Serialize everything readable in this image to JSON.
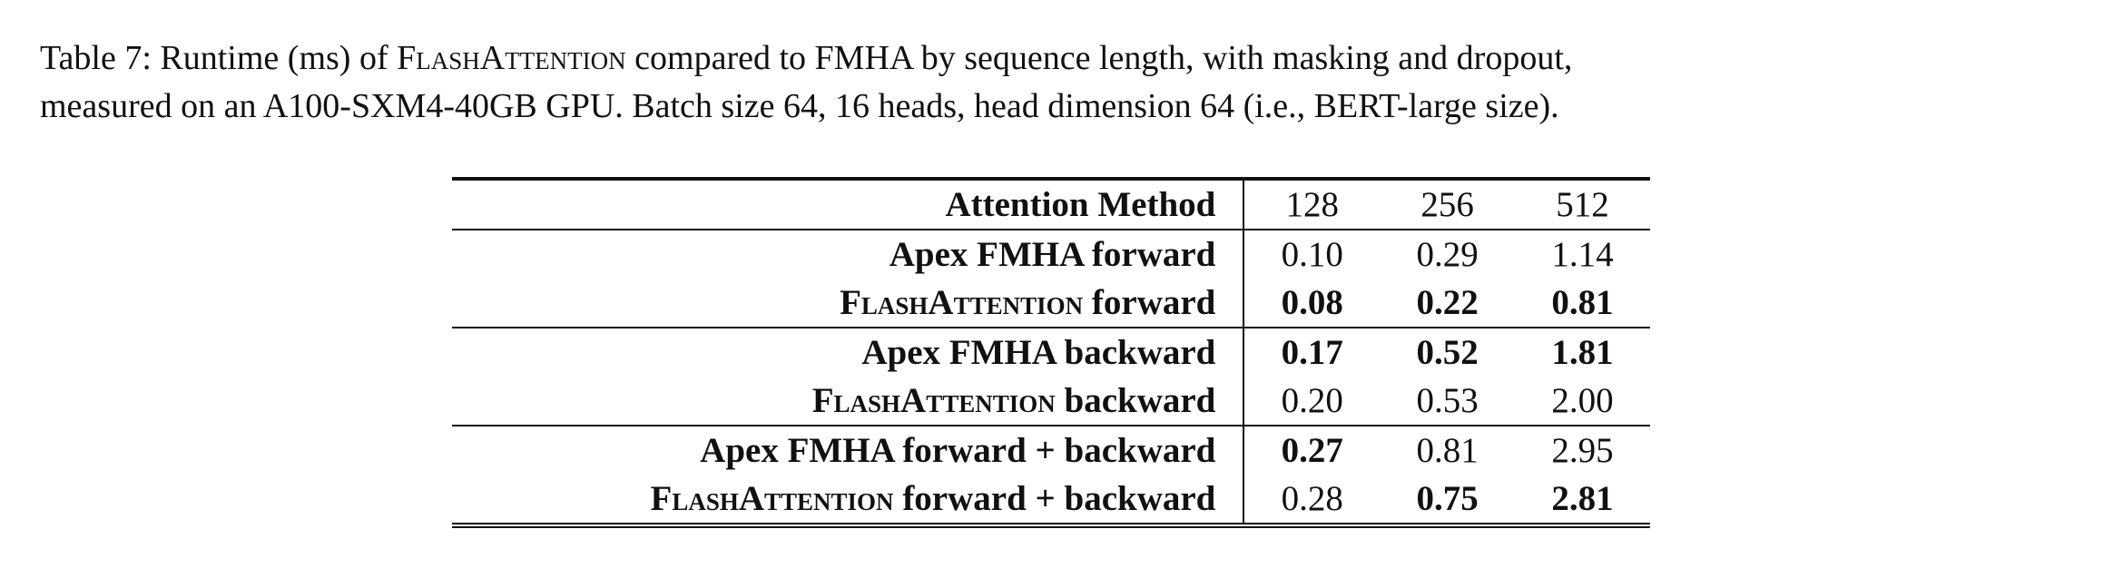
{
  "caption": {
    "lead": "Table 7: Runtime (ms) of ",
    "flash_name": "FlashAttention",
    "rest_line1": " compared to FMHA by sequence length, with masking and dropout,",
    "line2": "measured on an A100-SXM4-40GB GPU. Batch size 64, 16 heads, head dimension 64 (i.e., BERT-large size)."
  },
  "table": {
    "header": {
      "method": "Attention Method",
      "cols": [
        "128",
        "256",
        "512"
      ]
    },
    "rows": [
      {
        "method_prefix": "",
        "method_sc": "",
        "method_plain": "Apex FMHA forward",
        "values": [
          "0.10",
          "0.29",
          "1.14"
        ],
        "bold": [
          false,
          false,
          false
        ]
      },
      {
        "method_prefix": "",
        "method_sc": "FlashAttention",
        "method_plain": " forward",
        "values": [
          "0.08",
          "0.22",
          "0.81"
        ],
        "bold": [
          true,
          true,
          true
        ]
      },
      {
        "method_prefix": "",
        "method_sc": "",
        "method_plain": "Apex FMHA backward",
        "values": [
          "0.17",
          "0.52",
          "1.81"
        ],
        "bold": [
          true,
          true,
          true
        ]
      },
      {
        "method_prefix": "",
        "method_sc": "FlashAttention",
        "method_plain": " backward",
        "values": [
          "0.20",
          "0.53",
          "2.00"
        ],
        "bold": [
          false,
          false,
          false
        ]
      },
      {
        "method_prefix": "",
        "method_sc": "",
        "method_plain": "Apex FMHA forward + backward",
        "values": [
          "0.27",
          "0.81",
          "2.95"
        ],
        "bold": [
          true,
          false,
          false
        ]
      },
      {
        "method_prefix": "",
        "method_sc": "FlashAttention",
        "method_plain": " forward + backward",
        "values": [
          "0.28",
          "0.75",
          "2.81"
        ],
        "bold": [
          false,
          true,
          true
        ]
      }
    ]
  }
}
